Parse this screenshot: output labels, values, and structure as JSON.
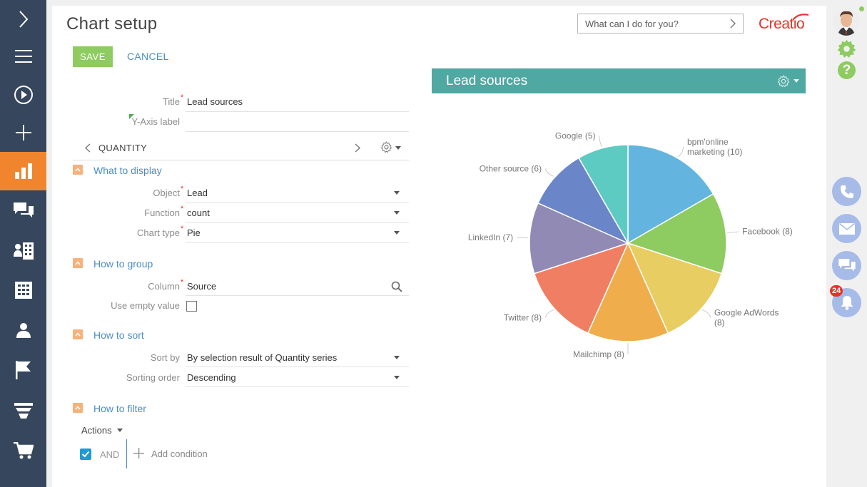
{
  "header": {
    "page_title": "Chart setup",
    "command_placeholder": "What can I do for you?",
    "logo_text": "Creatio"
  },
  "actions": {
    "save": "SAVE",
    "cancel": "CANCEL"
  },
  "form": {
    "title_label": "Title",
    "title_value": "Lead sources",
    "y_axis_label": "Y-Axis label",
    "y_axis_value": "",
    "series_tab": "QUANTITY",
    "what_to_display": {
      "heading": "What to display",
      "object_label": "Object",
      "object_value": "Lead",
      "function_label": "Function",
      "function_value": "count",
      "chart_type_label": "Chart type",
      "chart_type_value": "Pie"
    },
    "how_to_group": {
      "heading": "How to group",
      "column_label": "Column",
      "column_value": "Source",
      "use_empty_label": "Use empty value",
      "use_empty_checked": false
    },
    "how_to_sort": {
      "heading": "How to sort",
      "sort_by_label": "Sort by",
      "sort_by_value": "By selection result of Quantity series",
      "order_label": "Sorting order",
      "order_value": "Descending"
    },
    "how_to_filter": {
      "heading": "How to filter",
      "actions_label": "Actions",
      "and_label": "AND",
      "add_condition": "Add condition"
    }
  },
  "chart_panel": {
    "title": "Lead sources"
  },
  "chart_data": {
    "type": "pie",
    "title": "Lead sources",
    "categories": [
      "bpm'online marketing",
      "Facebook",
      "Google AdWords",
      "Mailchimp",
      "Twitter",
      "LinkedIn",
      "Other source",
      "Google"
    ],
    "values": [
      10,
      8,
      8,
      8,
      8,
      7,
      6,
      5
    ],
    "display_labels": [
      [
        "bpm'online",
        "marketing (10)"
      ],
      [
        "Facebook (8)"
      ],
      [
        "Google AdWords",
        "(8)"
      ],
      [
        "Mailchimp (8)"
      ],
      [
        "Twitter (8)"
      ],
      [
        "LinkedIn (7)"
      ],
      [
        "Other source (6)"
      ],
      [
        "Google (5)"
      ]
    ],
    "colors": [
      "#63b5e0",
      "#8ecb60",
      "#e8cd62",
      "#f0ad4b",
      "#f07e63",
      "#908ab5",
      "#6b86c8",
      "#5ecbc3"
    ]
  },
  "right_bar": {
    "notification_count": "24"
  },
  "colors": {
    "nav_bg": "#36465d",
    "nav_active": "#f0852d",
    "accent_green": "#8ecb60",
    "link_blue": "#4b8ec8",
    "chart_header": "#4fa8a2",
    "brand_red": "#e5332a"
  }
}
